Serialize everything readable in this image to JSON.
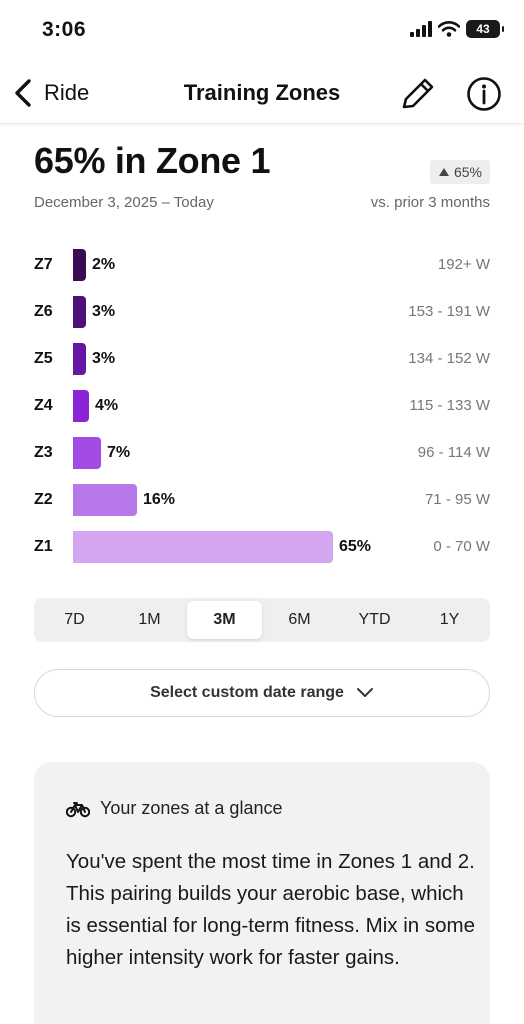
{
  "status_bar": {
    "time": "3:06",
    "battery": "43"
  },
  "header": {
    "back_label": "Ride",
    "title": "Training Zones"
  },
  "summary": {
    "headline": "65% in Zone 1",
    "date_range": "December 3, 2025 – Today",
    "change": "65%",
    "comparison": "vs. prior 3 months"
  },
  "chart_data": {
    "type": "bar",
    "orientation": "horizontal",
    "categories": [
      "Z7",
      "Z6",
      "Z5",
      "Z4",
      "Z3",
      "Z2",
      "Z1"
    ],
    "values": [
      2,
      3,
      3,
      4,
      7,
      16,
      65
    ],
    "value_labels": [
      "2%",
      "3%",
      "3%",
      "4%",
      "7%",
      "16%",
      "65%"
    ],
    "ranges": [
      "192+ W",
      "153 - 191 W",
      "134 - 152 W",
      "115 - 133 W",
      "96 - 114 W",
      "71 - 95 W",
      "0 - 70 W"
    ],
    "colors": [
      "#3b0a55",
      "#4e0f7a",
      "#6716a3",
      "#8a25d6",
      "#a24ce4",
      "#b877e8",
      "#d4a6f1"
    ],
    "xlim": [
      0,
      65
    ]
  },
  "periods": [
    "7D",
    "1M",
    "3M",
    "6M",
    "YTD",
    "1Y"
  ],
  "selected_period": "3M",
  "custom_range_label": "Select custom date range",
  "glance": {
    "title": "Your zones at a glance",
    "body": "You've spent the most time in Zones 1 and 2. This pairing builds your aerobic base, which is essential for long-term fitness. Mix in some higher intensity work for faster gains."
  },
  "icons": {
    "back": "chevron-left-icon",
    "edit": "pencil-icon",
    "info": "info-icon",
    "change": "triangle-up-icon",
    "dropdown": "chevron-down-icon",
    "glance": "bicycle-icon"
  }
}
